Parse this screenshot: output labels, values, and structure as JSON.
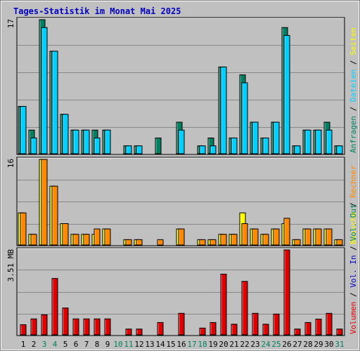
{
  "title": "Tages-Statistik im Monat Mai 2025",
  "colors": {
    "background": "#c0c0c0",
    "title": "#0000c0",
    "hits": "#008060",
    "files": "#00d0ff",
    "pages": "#ffff00",
    "visits": "#ff8800",
    "kbytes": "#e00000",
    "weekday_label": "#000000",
    "weekend_label": "#008060",
    "gridline": "#888888"
  },
  "chart_data": [
    {
      "type": "bar",
      "panel": "top",
      "scale_max_label": "17",
      "ylim": [
        0,
        17
      ],
      "x": [
        1,
        2,
        3,
        4,
        5,
        6,
        7,
        8,
        9,
        10,
        11,
        12,
        13,
        14,
        15,
        16,
        17,
        18,
        19,
        20,
        21,
        22,
        23,
        24,
        25,
        26,
        27,
        28,
        29,
        30,
        31
      ],
      "side_labels": [
        {
          "text": "Anfragen",
          "color_key": "hits"
        },
        {
          "text": "Dateien",
          "color_key": "files"
        },
        {
          "text": "Seiten",
          "color_key": "pages"
        }
      ],
      "series": [
        {
          "name": "Anfragen",
          "color_key": "hits",
          "values": [
            6,
            3,
            17,
            13,
            5,
            3,
            3,
            3,
            3,
            0,
            1,
            1,
            0,
            2,
            0,
            4,
            0,
            1,
            2,
            11,
            2,
            10,
            4,
            2,
            4,
            16,
            1,
            3,
            3,
            4,
            1
          ]
        },
        {
          "name": "Dateien",
          "color_key": "files",
          "values": [
            6,
            2,
            16,
            13,
            5,
            3,
            3,
            2,
            3,
            0,
            1,
            1,
            0,
            0,
            0,
            3,
            0,
            1,
            1,
            11,
            2,
            9,
            4,
            2,
            4,
            15,
            1,
            3,
            3,
            3,
            1
          ]
        }
      ]
    },
    {
      "type": "bar",
      "panel": "middle",
      "scale_max_label": "16",
      "ylim": [
        0,
        16
      ],
      "x": [
        1,
        2,
        3,
        4,
        5,
        6,
        7,
        8,
        9,
        10,
        11,
        12,
        13,
        14,
        15,
        16,
        17,
        18,
        19,
        20,
        21,
        22,
        23,
        24,
        25,
        26,
        27,
        28,
        29,
        30,
        31
      ],
      "side_labels": [
        {
          "text": "Besuche",
          "color_key": "pages"
        },
        {
          "text": "Rechner",
          "color_key": "visits"
        }
      ],
      "series": [
        {
          "name": "Besuche",
          "color_key": "pages",
          "values": [
            6,
            2,
            16,
            11,
            4,
            2,
            2,
            2,
            3,
            0,
            1,
            1,
            0,
            0,
            0,
            3,
            0,
            1,
            1,
            2,
            2,
            6,
            3,
            2,
            3,
            4,
            1,
            3,
            3,
            3,
            1
          ]
        },
        {
          "name": "Rechner",
          "color_key": "visits",
          "values": [
            6,
            2,
            16,
            11,
            4,
            2,
            2,
            3,
            3,
            0,
            1,
            1,
            0,
            1,
            0,
            3,
            0,
            1,
            1,
            2,
            2,
            4,
            3,
            2,
            3,
            5,
            1,
            3,
            3,
            3,
            1
          ]
        }
      ]
    },
    {
      "type": "bar",
      "panel": "bottom",
      "scale_max_label": "3.51 MB",
      "ylim": [
        0,
        3.51
      ],
      "x": [
        1,
        2,
        3,
        4,
        5,
        6,
        7,
        8,
        9,
        10,
        11,
        12,
        13,
        14,
        15,
        16,
        17,
        18,
        19,
        20,
        21,
        22,
        23,
        24,
        25,
        26,
        27,
        28,
        29,
        30,
        31
      ],
      "categories": [
        "1",
        "2",
        "3",
        "4",
        "5",
        "6",
        "7",
        "8",
        "9",
        "10",
        "11",
        "12",
        "13",
        "14",
        "15",
        "16",
        "17",
        "18",
        "19",
        "20",
        "21",
        "22",
        "23",
        "24",
        "25",
        "26",
        "27",
        "28",
        "29",
        "30",
        "31"
      ],
      "weekend_days": [
        3,
        4,
        10,
        11,
        17,
        18,
        24,
        25,
        31
      ],
      "side_labels": [
        {
          "text": "Volumen",
          "color_key": "kbytes"
        },
        {
          "text": "Vol. In",
          "color_key": "title"
        },
        {
          "text": "Vol. Out",
          "color_key": "hits"
        }
      ],
      "series": [
        {
          "name": "Volumen",
          "color_key": "kbytes",
          "values": [
            0.42,
            0.66,
            0.83,
            2.33,
            1.11,
            0.66,
            0.66,
            0.66,
            0.66,
            0,
            0.24,
            0.24,
            0,
            0.51,
            0,
            0.89,
            0,
            0.28,
            0.51,
            2.51,
            0.44,
            2.21,
            0.89,
            0.44,
            0.86,
            3.51,
            0.24,
            0.51,
            0.65,
            0.89,
            0.24
          ]
        }
      ]
    }
  ]
}
